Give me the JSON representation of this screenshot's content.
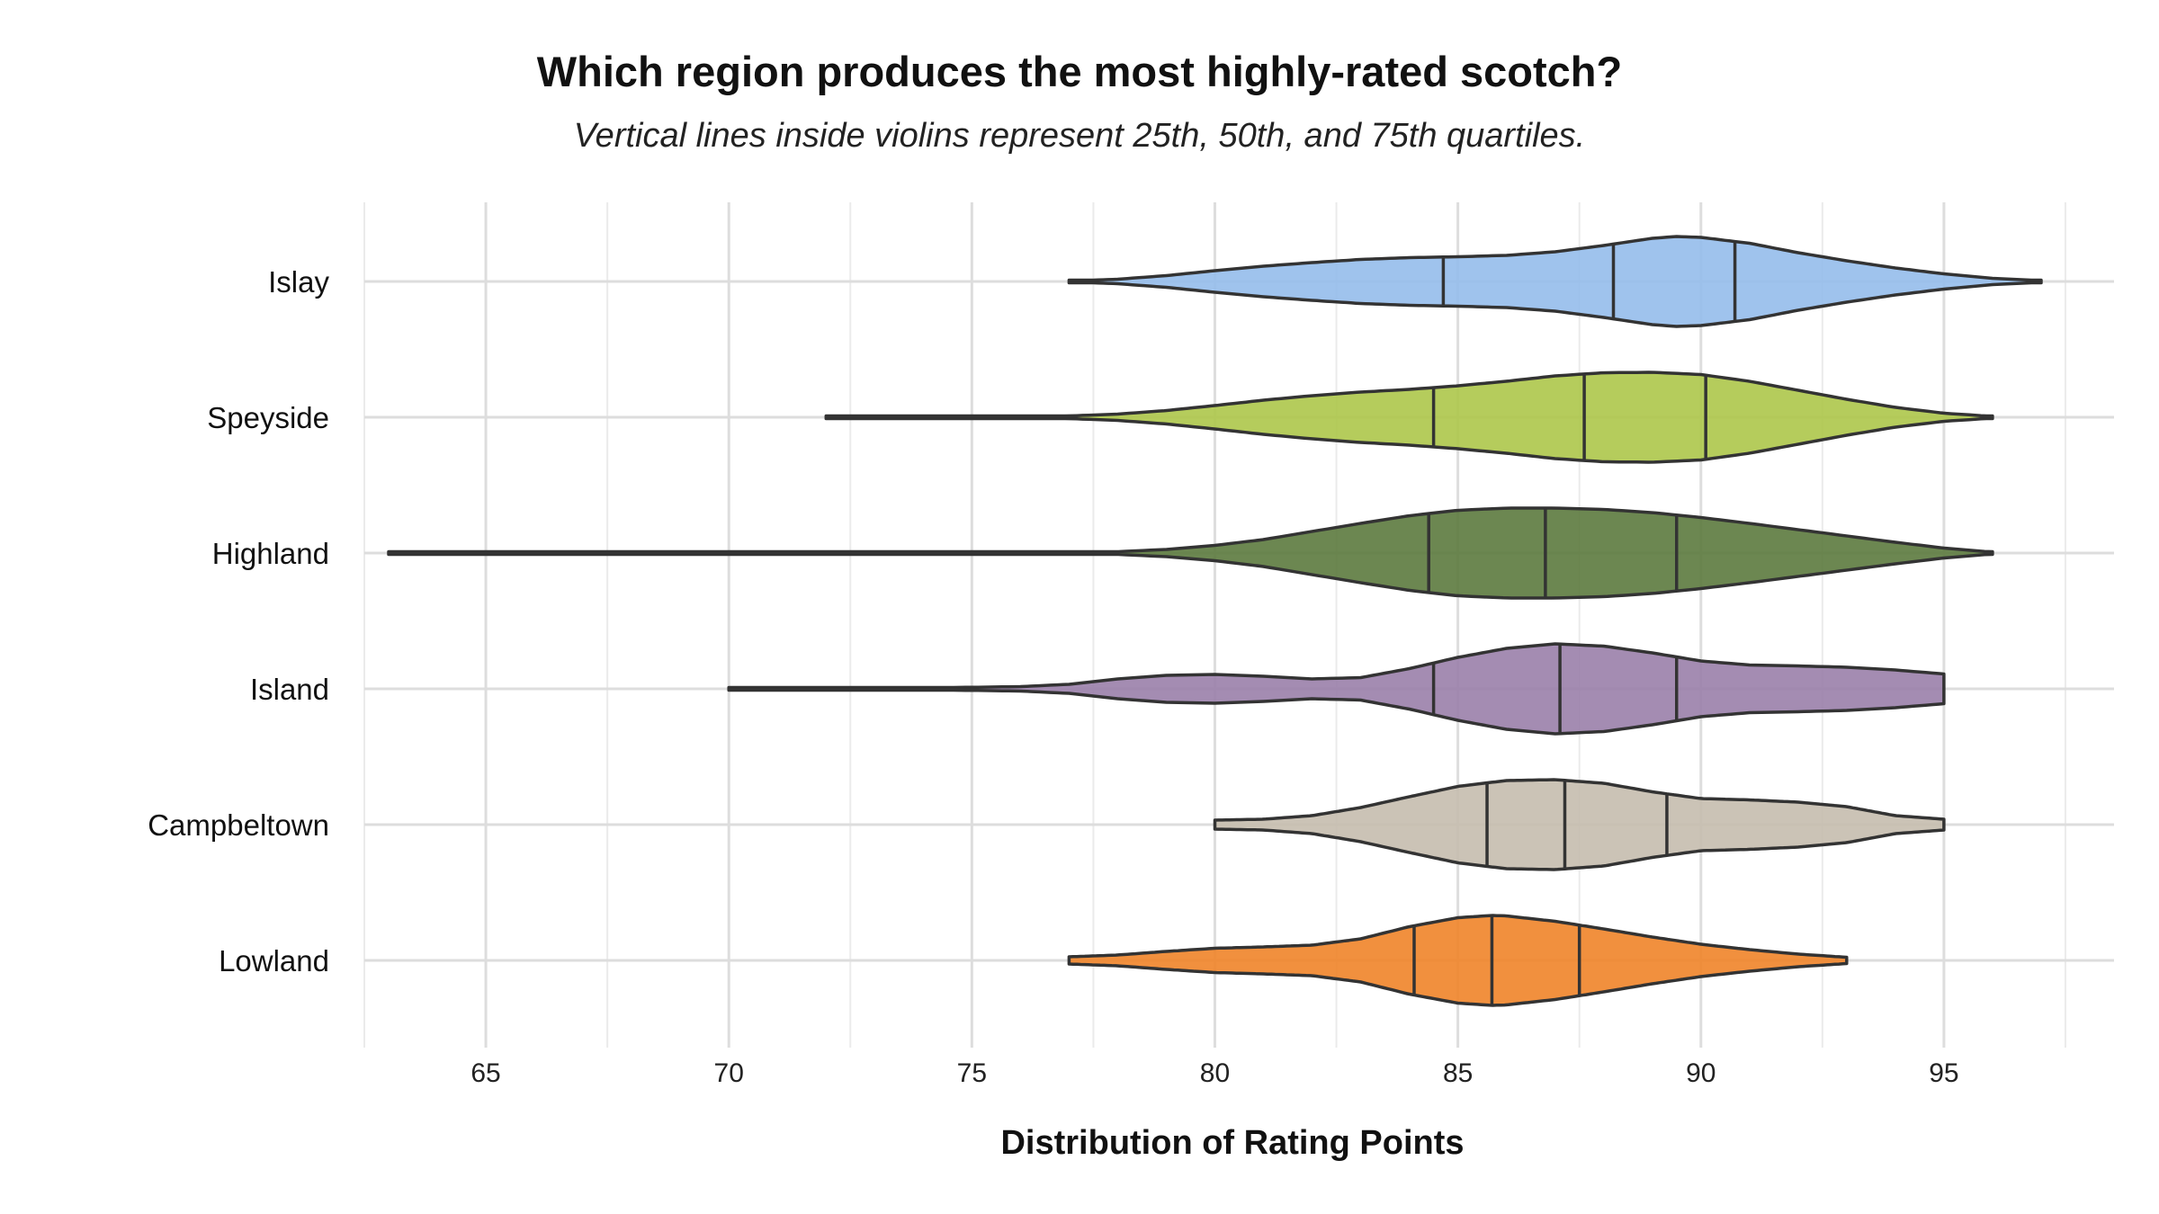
{
  "chart_data": {
    "type": "violin",
    "title": "Which region produces the most highly-rated scotch?",
    "subtitle": "Vertical lines inside violins represent 25th, 50th, and 75th quartiles.",
    "xlabel": "Distribution of Rating Points",
    "ylabel": "",
    "xlim": [
      62.5,
      98.5
    ],
    "x_ticks": [
      65,
      70,
      75,
      80,
      85,
      90,
      95
    ],
    "grid": true,
    "categories": [
      "Islay",
      "Speyside",
      "Highland",
      "Island",
      "Campbeltown",
      "Lowland"
    ],
    "series": [
      {
        "category": "Islay",
        "color": "#95BDEB",
        "min": 77,
        "max": 97,
        "quartiles": [
          84.7,
          88.2,
          90.7
        ],
        "density": [
          [
            77,
            0.01
          ],
          [
            78,
            0.05
          ],
          [
            79,
            0.13
          ],
          [
            80,
            0.24
          ],
          [
            81,
            0.34
          ],
          [
            82,
            0.42
          ],
          [
            83,
            0.49
          ],
          [
            84,
            0.53
          ],
          [
            85,
            0.55
          ],
          [
            86,
            0.58
          ],
          [
            87,
            0.66
          ],
          [
            88,
            0.8
          ],
          [
            89,
            0.96
          ],
          [
            89.5,
            1.0
          ],
          [
            90,
            0.98
          ],
          [
            91,
            0.85
          ],
          [
            92,
            0.64
          ],
          [
            93,
            0.46
          ],
          [
            94,
            0.3
          ],
          [
            95,
            0.17
          ],
          [
            96,
            0.07
          ],
          [
            97,
            0.02
          ]
        ]
      },
      {
        "category": "Speyside",
        "color": "#ADC74A",
        "min": 72,
        "max": 96,
        "quartiles": [
          84.5,
          87.6,
          90.1
        ],
        "density": [
          [
            72,
            0.01
          ],
          [
            74,
            0.01
          ],
          [
            76,
            0.02
          ],
          [
            77,
            0.03
          ],
          [
            78,
            0.07
          ],
          [
            79,
            0.15
          ],
          [
            80,
            0.26
          ],
          [
            81,
            0.38
          ],
          [
            82,
            0.48
          ],
          [
            83,
            0.56
          ],
          [
            84,
            0.62
          ],
          [
            85,
            0.7
          ],
          [
            86,
            0.8
          ],
          [
            87,
            0.92
          ],
          [
            88,
            0.99
          ],
          [
            89,
            1.0
          ],
          [
            90,
            0.95
          ],
          [
            91,
            0.8
          ],
          [
            92,
            0.6
          ],
          [
            93,
            0.4
          ],
          [
            94,
            0.22
          ],
          [
            95,
            0.09
          ],
          [
            96,
            0.02
          ]
        ]
      },
      {
        "category": "Highland",
        "color": "#5C7A3E",
        "min": 63,
        "max": 96,
        "quartiles": [
          84.4,
          86.8,
          89.5
        ],
        "density": [
          [
            63,
            0.01
          ],
          [
            70,
            0.01
          ],
          [
            76,
            0.01
          ],
          [
            78,
            0.03
          ],
          [
            79,
            0.08
          ],
          [
            80,
            0.17
          ],
          [
            81,
            0.3
          ],
          [
            82,
            0.48
          ],
          [
            83,
            0.66
          ],
          [
            84,
            0.83
          ],
          [
            85,
            0.95
          ],
          [
            86,
            1.0
          ],
          [
            87,
            1.0
          ],
          [
            88,
            0.97
          ],
          [
            89,
            0.9
          ],
          [
            90,
            0.79
          ],
          [
            91,
            0.66
          ],
          [
            92,
            0.52
          ],
          [
            93,
            0.38
          ],
          [
            94,
            0.24
          ],
          [
            95,
            0.11
          ],
          [
            96,
            0.02
          ]
        ]
      },
      {
        "category": "Island",
        "color": "#9A7FAA",
        "min": 70,
        "max": 95,
        "quartiles": [
          84.5,
          87.1,
          89.5
        ],
        "density": [
          [
            70,
            0.01
          ],
          [
            72,
            0.01
          ],
          [
            74,
            0.02
          ],
          [
            76,
            0.05
          ],
          [
            77,
            0.1
          ],
          [
            78,
            0.22
          ],
          [
            79,
            0.3
          ],
          [
            80,
            0.32
          ],
          [
            81,
            0.28
          ],
          [
            82,
            0.22
          ],
          [
            83,
            0.25
          ],
          [
            84,
            0.45
          ],
          [
            85,
            0.7
          ],
          [
            86,
            0.9
          ],
          [
            87,
            1.0
          ],
          [
            88,
            0.95
          ],
          [
            89,
            0.8
          ],
          [
            90,
            0.62
          ],
          [
            91,
            0.53
          ],
          [
            92,
            0.51
          ],
          [
            93,
            0.48
          ],
          [
            94,
            0.42
          ],
          [
            95,
            0.33
          ]
        ]
      },
      {
        "category": "Campbeltown",
        "color": "#C5BCAE",
        "min": 80,
        "max": 95,
        "quartiles": [
          85.6,
          87.2,
          89.3
        ],
        "density": [
          [
            80,
            0.1
          ],
          [
            81,
            0.12
          ],
          [
            82,
            0.2
          ],
          [
            83,
            0.38
          ],
          [
            84,
            0.62
          ],
          [
            85,
            0.85
          ],
          [
            86,
            0.98
          ],
          [
            87,
            1.0
          ],
          [
            88,
            0.92
          ],
          [
            89,
            0.73
          ],
          [
            90,
            0.58
          ],
          [
            91,
            0.55
          ],
          [
            92,
            0.5
          ],
          [
            93,
            0.4
          ],
          [
            94,
            0.2
          ],
          [
            95,
            0.12
          ]
        ]
      },
      {
        "category": "Lowland",
        "color": "#EF8429",
        "min": 77,
        "max": 93,
        "quartiles": [
          84.1,
          85.7,
          87.5
        ],
        "density": [
          [
            77,
            0.08
          ],
          [
            78,
            0.12
          ],
          [
            79,
            0.2
          ],
          [
            80,
            0.27
          ],
          [
            81,
            0.3
          ],
          [
            82,
            0.34
          ],
          [
            83,
            0.48
          ],
          [
            84,
            0.75
          ],
          [
            85,
            0.95
          ],
          [
            85.7,
            1.0
          ],
          [
            86,
            0.99
          ],
          [
            87,
            0.87
          ],
          [
            88,
            0.7
          ],
          [
            89,
            0.52
          ],
          [
            90,
            0.36
          ],
          [
            91,
            0.24
          ],
          [
            92,
            0.14
          ],
          [
            93,
            0.07
          ]
        ]
      }
    ]
  }
}
